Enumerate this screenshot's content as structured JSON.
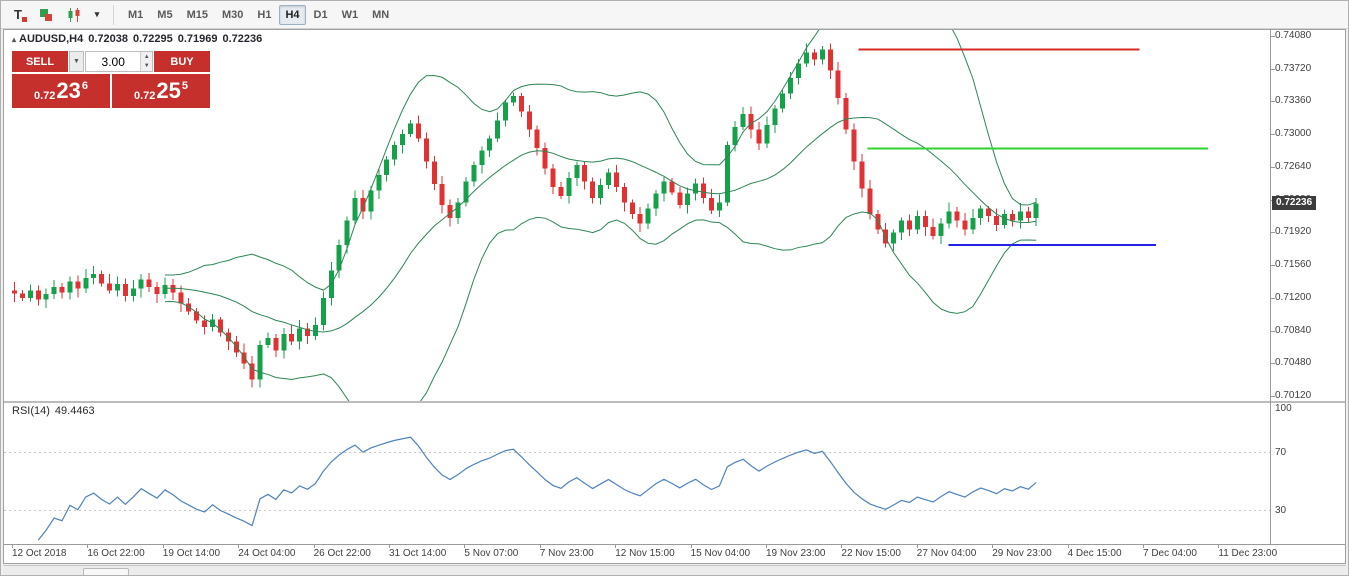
{
  "toolbar": {
    "tools": [
      {
        "name": "text-label-tool",
        "glyph": "T"
      },
      {
        "name": "shapes-tool",
        "glyph": ""
      },
      {
        "name": "chart-type-candlestick-tool",
        "glyph": ""
      },
      {
        "name": "chart-type-dropdown",
        "glyph": "▾"
      }
    ],
    "timeframes": [
      {
        "label": "M1",
        "active": false
      },
      {
        "label": "M5",
        "active": false
      },
      {
        "label": "M15",
        "active": false
      },
      {
        "label": "M30",
        "active": false
      },
      {
        "label": "H1",
        "active": false
      },
      {
        "label": "H4",
        "active": true
      },
      {
        "label": "D1",
        "active": false
      },
      {
        "label": "W1",
        "active": false
      },
      {
        "label": "MN",
        "active": false
      }
    ]
  },
  "symbol_line": {
    "toggle_glyph": "▴",
    "symbol": "AUDUSD,H4",
    "open": "0.72038",
    "high": "0.72295",
    "low": "0.71969",
    "close": "0.72236"
  },
  "trade_panel": {
    "sell_label": "SELL",
    "buy_label": "BUY",
    "volume": "3.00",
    "dropdown_glyph": "▼",
    "spin_up_glyph": "▲",
    "spin_down_glyph": "▼",
    "sell_price": {
      "prefix": "0.72",
      "pips": "23",
      "pipette": "6"
    },
    "buy_price": {
      "prefix": "0.72",
      "pips": "25",
      "pipette": "5"
    },
    "button_color": "#c5302c"
  },
  "rsi_panel": {
    "name": "RSI(14)",
    "value": "49.4463"
  },
  "chart_data": {
    "type": "candlestick",
    "symbol": "AUDUSD",
    "timeframe": "H4",
    "title": "AUDUSD,H4",
    "ohlc_line": {
      "open": 0.72038,
      "high": 0.72295,
      "low": 0.71969,
      "close": 0.72236
    },
    "current_price": "0.72236",
    "ylim": [
      0.7012,
      0.7408
    ],
    "y_axis_labels": [
      "0.74080",
      "0.73720",
      "0.73360",
      "0.73000",
      "0.72640",
      "0.72280",
      "0.71920",
      "0.71560",
      "0.71200",
      "0.70840",
      "0.70480",
      "0.70120"
    ],
    "x_axis_labels": [
      "12 Oct 2018",
      "16 Oct 22:00",
      "19 Oct 14:00",
      "24 Oct 04:00",
      "26 Oct 22:00",
      "31 Oct 14:00",
      "5 Nov 07:00",
      "7 Nov 23:00",
      "12 Nov 15:00",
      "15 Nov 04:00",
      "19 Nov 23:00",
      "22 Nov 15:00",
      "27 Nov 04:00",
      "29 Nov 23:00",
      "4 Dec 15:00",
      "7 Dec 04:00",
      "11 Dec 23:00"
    ],
    "first_open": 0.7128,
    "closes": [
      0.7125,
      0.712,
      0.7128,
      0.7118,
      0.7124,
      0.7132,
      0.7126,
      0.7138,
      0.713,
      0.7142,
      0.7146,
      0.7136,
      0.7128,
      0.7135,
      0.7122,
      0.713,
      0.714,
      0.7132,
      0.7124,
      0.7134,
      0.7126,
      0.7114,
      0.7105,
      0.7095,
      0.7088,
      0.7096,
      0.7082,
      0.7072,
      0.706,
      0.7048,
      0.703,
      0.7068,
      0.7076,
      0.7062,
      0.708,
      0.7072,
      0.7086,
      0.7078,
      0.709,
      0.712,
      0.715,
      0.7178,
      0.7205,
      0.723,
      0.7215,
      0.7238,
      0.7255,
      0.7272,
      0.7288,
      0.73,
      0.7312,
      0.7295,
      0.727,
      0.7245,
      0.7222,
      0.7208,
      0.7225,
      0.7248,
      0.7266,
      0.7282,
      0.7295,
      0.7315,
      0.7335,
      0.7342,
      0.7325,
      0.7305,
      0.7285,
      0.7262,
      0.7242,
      0.7232,
      0.7252,
      0.7266,
      0.7248,
      0.723,
      0.7244,
      0.7258,
      0.7242,
      0.7225,
      0.7212,
      0.7202,
      0.7218,
      0.7235,
      0.7248,
      0.7236,
      0.7222,
      0.7235,
      0.7246,
      0.723,
      0.7216,
      0.7225,
      0.7288,
      0.7308,
      0.7322,
      0.7305,
      0.729,
      0.731,
      0.7328,
      0.7345,
      0.7362,
      0.7378,
      0.739,
      0.7382,
      0.7393,
      0.737,
      0.734,
      0.7305,
      0.727,
      0.724,
      0.7212,
      0.7195,
      0.718,
      0.7192,
      0.7205,
      0.7195,
      0.721,
      0.7198,
      0.7188,
      0.7202,
      0.7215,
      0.7205,
      0.7195,
      0.7208,
      0.7218,
      0.721,
      0.72,
      0.7212,
      0.7205,
      0.7215,
      0.7208,
      0.72236
    ],
    "up_color": "#15a04a",
    "down_color": "#e03232",
    "bollinger": {
      "period": 20,
      "deviation": 2,
      "color": "#2d8653"
    },
    "rsi": {
      "period": 14,
      "value": 49.4463,
      "color": "#4f81bd",
      "levels": [
        100,
        70,
        30
      ]
    },
    "hlines": [
      {
        "color": "#d42a2a",
        "price": 0.7393,
        "x1_frac": 0.675,
        "x2_frac": 0.897
      },
      {
        "color": "#2fd32f",
        "price": 0.7284,
        "x1_frac": 0.682,
        "x2_frac": 0.951
      },
      {
        "color": "#2222e6",
        "price": 0.7178,
        "x1_frac": 0.746,
        "x2_frac": 0.91
      }
    ]
  }
}
